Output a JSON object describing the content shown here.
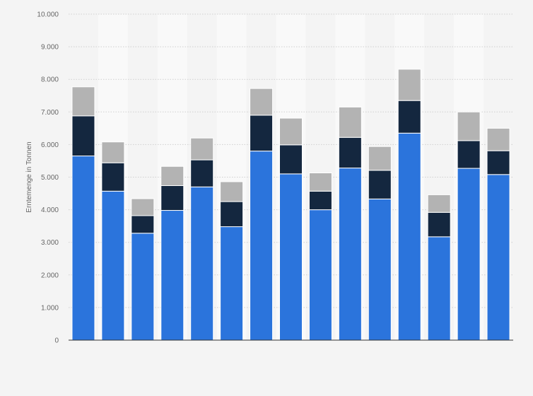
{
  "chart_data": {
    "type": "bar",
    "stacked": true,
    "title": "",
    "xlabel": "",
    "ylabel": "Erntemenge in Tonnen",
    "ylim": [
      0,
      10000
    ],
    "yticks": [
      0,
      1000,
      2000,
      3000,
      4000,
      5000,
      6000,
      7000,
      8000,
      9000,
      10000
    ],
    "ytick_labels": [
      "0",
      "1.000",
      "2.000",
      "3.000",
      "4.000",
      "5.000",
      "6.000",
      "7.000",
      "8.000",
      "9.000",
      "10.000"
    ],
    "grid": true,
    "legend": "none",
    "categories": [
      "",
      "",
      "",
      "",
      "",
      "",
      "",
      "",
      "",
      "",
      "",
      "",
      "",
      "",
      ""
    ],
    "series": [
      {
        "color": "#2b74dc",
        "values": [
          5650,
          4570,
          3280,
          3980,
          4700,
          3480,
          5800,
          5100,
          4000,
          5280,
          4330,
          6350,
          3170,
          5270,
          5080
        ]
      },
      {
        "color": "#14273f",
        "values": [
          1230,
          870,
          540,
          760,
          830,
          770,
          1100,
          890,
          570,
          940,
          880,
          1000,
          750,
          850,
          730
        ]
      },
      {
        "color": "#b3b3b3",
        "values": [
          890,
          640,
          520,
          590,
          670,
          610,
          820,
          820,
          560,
          930,
          730,
          960,
          540,
          880,
          690
        ]
      }
    ]
  }
}
